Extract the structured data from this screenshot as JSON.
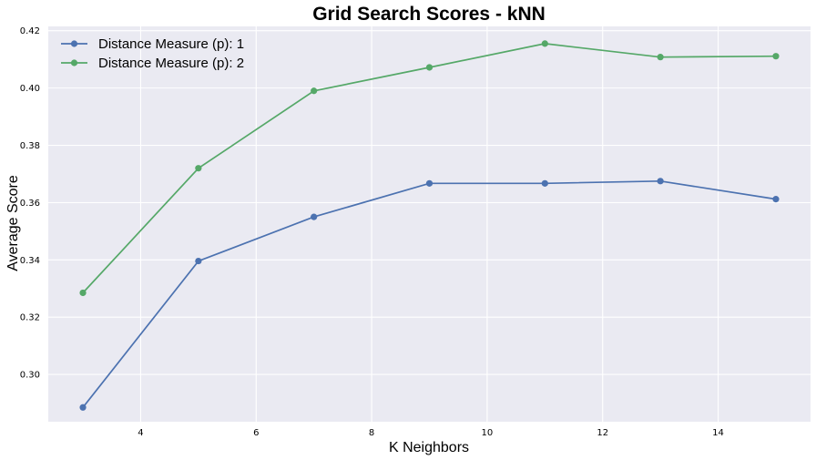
{
  "chart_data": {
    "type": "line",
    "title": "Grid Search Scores - kNN",
    "xlabel": "K Neighbors",
    "ylabel": "Average Score",
    "x": [
      3,
      5,
      7,
      9,
      11,
      13,
      15
    ],
    "xlim": [
      2.4,
      15.6
    ],
    "ylim": [
      0.2835,
      0.4215
    ],
    "xticks": [
      4,
      6,
      8,
      10,
      12,
      14
    ],
    "yticks": [
      0.3,
      0.32,
      0.34,
      0.36,
      0.38,
      0.4,
      0.42
    ],
    "ytick_labels": [
      "0.30",
      "0.32",
      "0.34",
      "0.36",
      "0.38",
      "0.40",
      "0.42"
    ],
    "grid": true,
    "legend_position": "top-left",
    "series": [
      {
        "name": "Distance Measure (p): 1",
        "color": "#4c72b0",
        "values": [
          0.2885,
          0.3396,
          0.355,
          0.3667,
          0.3667,
          0.3675,
          0.3612
        ]
      },
      {
        "name": "Distance Measure (p): 2",
        "color": "#55a868",
        "values": [
          0.3285,
          0.372,
          0.399,
          0.4072,
          0.4155,
          0.4108,
          0.4111
        ]
      }
    ],
    "background_color": "#eaeaf2",
    "grid_color": "#ffffff"
  }
}
